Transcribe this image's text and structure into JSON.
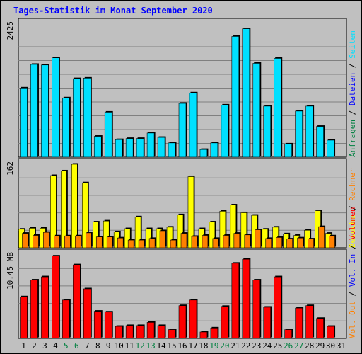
{
  "chart_data": {
    "type": "bar",
    "title": "Tages-Statistik im Monat September 2020",
    "categories": [
      "1",
      "2",
      "3",
      "4",
      "5",
      "6",
      "7",
      "8",
      "9",
      "10",
      "11",
      "12",
      "13",
      "14",
      "15",
      "16",
      "17",
      "18",
      "19",
      "20",
      "21",
      "22",
      "23",
      "24",
      "25",
      "26",
      "27",
      "28",
      "29",
      "30",
      "31"
    ],
    "weekend_days": [
      "5",
      "6",
      "12",
      "13",
      "19",
      "20",
      "26",
      "27"
    ],
    "panels": [
      {
        "id": "requests",
        "ymax_label": "2425",
        "ylim": [
          0,
          2425
        ],
        "series": [
          {
            "name": "Anfragen",
            "color": "#008040",
            "values": [
              1300,
              1740,
              1720,
              1860,
              1130,
              1470,
              1480,
              420,
              860,
              340,
              370,
              370,
              480,
              400,
              300,
              1010,
              1200,
              190,
              300,
              980,
              2250,
              2390,
              1770,
              970,
              1840,
              280,
              870,
              960,
              600,
              350,
              0
            ]
          },
          {
            "name": "Dateien",
            "color": "#0000ff",
            "values": [
              1280,
              1710,
              1700,
              1830,
              1100,
              1450,
              1460,
              390,
              840,
              320,
              350,
              350,
              450,
              370,
              270,
              990,
              1180,
              150,
              270,
              960,
              2220,
              2360,
              1730,
              940,
              1820,
              250,
              850,
              940,
              570,
              320,
              0
            ]
          },
          {
            "name": "Seiten",
            "color": "#00e0ff",
            "values": [
              1260,
              1690,
              1680,
              1810,
              1080,
              1430,
              1440,
              380,
              820,
              320,
              340,
              340,
              440,
              360,
              260,
              980,
              1170,
              140,
              260,
              950,
              2200,
              2340,
              1710,
              930,
              1800,
              240,
              840,
              930,
              560,
              310,
              0
            ]
          }
        ],
        "draw": [
          "Seiten"
        ]
      },
      {
        "id": "visits",
        "ymax_label": "162",
        "ylim": [
          0,
          162
        ],
        "series": [
          {
            "name": "Besuche",
            "color": "#ffff00",
            "values": [
              36,
              38,
              38,
              140,
              149,
              162,
              126,
              50,
              52,
              31,
              37,
              60,
              37,
              37,
              40,
              64,
              138,
              37,
              50,
              71,
              83,
              68,
              63,
              36,
              40,
              27,
              24,
              34,
              72,
              28,
              0
            ]
          },
          {
            "name": "Rechner",
            "color": "#ff8000",
            "values": [
              28,
              24,
              30,
              23,
              23,
              23,
              29,
              21,
              21,
              19,
              15,
              15,
              18,
              33,
              15,
              28,
              22,
              24,
              18,
              24,
              28,
              25,
              35,
              18,
              20,
              17,
              19,
              17,
              41,
              23,
              0
            ]
          }
        ],
        "draw": [
          "Besuche",
          "Rechner"
        ]
      },
      {
        "id": "volume",
        "ymax_label": "10.45 MB",
        "ylim": [
          0,
          10.45
        ],
        "series": [
          {
            "name": "Vol. Out",
            "color": "#ff8000",
            "values": []
          },
          {
            "name": "Vol. In",
            "color": "#0000ff",
            "values": []
          },
          {
            "name": "Volumen",
            "color": "#ff0000",
            "values": [
              5.2,
              7.3,
              7.7,
              10.3,
              4.8,
              9.2,
              6.2,
              3.4,
              3.3,
              1.5,
              1.6,
              1.6,
              2.0,
              1.6,
              1.1,
              4.1,
              4.8,
              0.8,
              1.3,
              4.0,
              9.4,
              9.9,
              7.3,
              3.9,
              7.7,
              1.1,
              3.8,
              4.1,
              2.5,
              1.5,
              0
            ]
          }
        ],
        "draw": [
          "Volumen"
        ]
      }
    ],
    "legend": {
      "position": "right",
      "groups": [
        [
          {
            "text": "Anfragen",
            "color": "#008040"
          },
          {
            "text": "Dateien",
            "color": "#0000ff"
          },
          {
            "text": "Seiten",
            "color": "#00e0ff"
          }
        ],
        [
          {
            "text": "Besuche",
            "color": "#ffff00"
          },
          {
            "text": "Rechner",
            "color": "#ff8000"
          }
        ],
        [
          {
            "text": "Vol. Out",
            "color": "#ff8000"
          },
          {
            "text": "Vol. In",
            "color": "#0000ff"
          },
          {
            "text": "Volumen",
            "color": "#ff0000"
          }
        ]
      ],
      "separator": " / "
    },
    "grid": true,
    "colors": {
      "title": "#0000ff",
      "weekday_label": "#000000",
      "weekend_label": "#008040",
      "background": "#c0c0c0",
      "border": "#000000"
    }
  }
}
